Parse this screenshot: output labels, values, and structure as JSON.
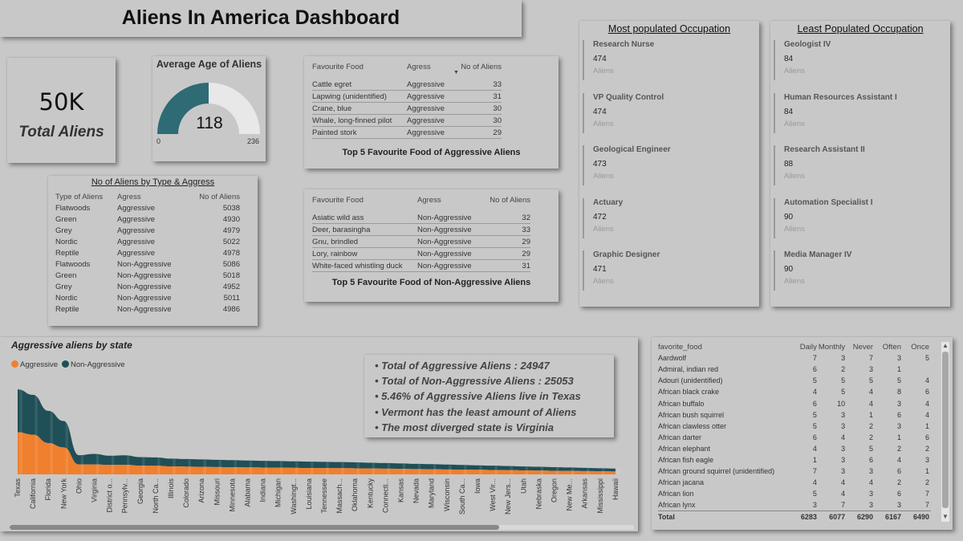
{
  "title": "Aliens In America Dashboard",
  "kpi": {
    "value": "50K",
    "label": "Total Aliens"
  },
  "gauge": {
    "title": "Average Age of Aliens",
    "value": 118,
    "min": 0,
    "max": 236,
    "value_label": "118",
    "min_label": "0",
    "max_label": "236",
    "fill_color": "#2e6b74",
    "track_color": "#e8e8e8"
  },
  "type_table": {
    "title": "No of Aliens by Type & Aggress",
    "headers": [
      "Type of Aliens",
      "Agress",
      "No of Aliens"
    ],
    "rows": [
      [
        "Flatwoods",
        "Aggressive",
        "5038"
      ],
      [
        "Green",
        "Aggressive",
        "4930"
      ],
      [
        "Grey",
        "Aggressive",
        "4979"
      ],
      [
        "Nordic",
        "Aggressive",
        "5022"
      ],
      [
        "Reptile",
        "Aggressive",
        "4978"
      ],
      [
        "Flatwoods",
        "Non-Aggressive",
        "5086"
      ],
      [
        "Green",
        "Non-Aggressive",
        "5018"
      ],
      [
        "Grey",
        "Non-Aggressive",
        "4952"
      ],
      [
        "Nordic",
        "Non-Aggressive",
        "5011"
      ],
      [
        "Reptile",
        "Non-Aggressive",
        "4986"
      ]
    ]
  },
  "agg_food": {
    "title": "Top 5 Favourite Food of Aggressive Aliens",
    "headers": [
      "Favourite Food",
      "Agress",
      "No of Aliens"
    ],
    "rows": [
      [
        "Cattle egret",
        "Aggressive",
        "33"
      ],
      [
        "Lapwing (unidentified)",
        "Aggressive",
        "31"
      ],
      [
        "Crane, blue",
        "Aggressive",
        "30"
      ],
      [
        "Whale, long-finned pilot",
        "Aggressive",
        "30"
      ],
      [
        "Painted stork",
        "Aggressive",
        "29"
      ]
    ]
  },
  "nonagg_food": {
    "title": "Top 5 Favourite Food of Non-Aggressive Aliens",
    "headers": [
      "Favourite Food",
      "Agress",
      "No of Aliens"
    ],
    "rows": [
      [
        "Asiatic wild ass",
        "Non-Aggressive",
        "32"
      ],
      [
        "Deer, barasingha",
        "Non-Aggressive",
        "33"
      ],
      [
        "Gnu, brindled",
        "Non-Aggressive",
        "29"
      ],
      [
        "Lory, rainbow",
        "Non-Aggressive",
        "29"
      ],
      [
        "White-faced whistling duck",
        "Non-Aggressive",
        "31"
      ]
    ]
  },
  "most_occ": {
    "title": "Most populated Occupation",
    "items": [
      {
        "name": "Research Nurse",
        "value": "474",
        "label": "Aliens"
      },
      {
        "name": "VP Quality Control",
        "value": "474",
        "label": "Aliens"
      },
      {
        "name": "Geological Engineer",
        "value": "473",
        "label": "Aliens"
      },
      {
        "name": "Actuary",
        "value": "472",
        "label": "Aliens"
      },
      {
        "name": "Graphic Designer",
        "value": "471",
        "label": "Aliens"
      }
    ]
  },
  "least_occ": {
    "title": "Least Populated Occupation",
    "items": [
      {
        "name": "Geologist IV",
        "value": "84",
        "label": "Aliens"
      },
      {
        "name": "Human Resources Assistant I",
        "value": "84",
        "label": "Aliens"
      },
      {
        "name": "Research Assistant II",
        "value": "88",
        "label": "Aliens"
      },
      {
        "name": "Automation Specialist I",
        "value": "90",
        "label": "Aliens"
      },
      {
        "name": "Media Manager IV",
        "value": "90",
        "label": "Aliens"
      }
    ]
  },
  "insights": [
    "Total of Aggressive Aliens : 24947",
    "Total of Non-Aggressive Aliens :  25053",
    "5.46% of Aggressive Aliens live in Texas",
    "Vermont has the least amount of Aliens",
    "The most diverged state is Virginia"
  ],
  "chart_data": {
    "type": "area",
    "title": "Aggressive aliens by state",
    "stacked": true,
    "legend_position": "top-left",
    "colors": {
      "Aggressive": "#f07f2e",
      "Non-Aggressive": "#1f4f57"
    },
    "categories": [
      "Texas",
      "California",
      "Florida",
      "New York",
      "Ohio",
      "Virginia",
      "District o...",
      "Pennsylv...",
      "Georgia",
      "North Ca...",
      "Illinois",
      "Colorado",
      "Arizona",
      "Missouri",
      "Minnesota",
      "Alabama",
      "Indiana",
      "Michigan",
      "Washingt...",
      "Louisiana",
      "Tennessee",
      "Massach...",
      "Oklahoma",
      "Kentucky",
      "Connecti...",
      "Kansas",
      "Nevada",
      "Maryland",
      "Wisconsin",
      "South Ca...",
      "Iowa",
      "West Vir...",
      "New Jers...",
      "Utah",
      "Nebraska",
      "Oregon",
      "New Me...",
      "Arkansas",
      "Mississippi",
      "Hawaii"
    ],
    "series": [
      {
        "name": "Aggressive",
        "values": [
          1362,
          1284,
          1012,
          872,
          320,
          320,
          305,
          312,
          283,
          278,
          258,
          250,
          244,
          238,
          232,
          226,
          221,
          217,
          212,
          208,
          204,
          200,
          196,
          190,
          184,
          178,
          172,
          166,
          160,
          154,
          148,
          142,
          136,
          130,
          124,
          118,
          112,
          106,
          100,
          95
        ]
      },
      {
        "name": "Non-Aggressive",
        "values": [
          1384,
          1286,
          1040,
          852,
          300,
          342,
          298,
          305,
          276,
          271,
          252,
          245,
          239,
          233,
          228,
          222,
          218,
          213,
          208,
          204,
          201,
          197,
          193,
          187,
          181,
          175,
          169,
          163,
          157,
          151,
          145,
          139,
          133,
          127,
          121,
          115,
          110,
          104,
          98,
          92
        ]
      }
    ]
  },
  "legend": {
    "aggressive": "Aggressive",
    "non_aggressive": "Non-Aggressive"
  },
  "matrix": {
    "headers": [
      "favorite_food",
      "Daily",
      "Monthly",
      "Never",
      "Often",
      "Once"
    ],
    "rows": [
      [
        "Aardwolf",
        "7",
        "3",
        "7",
        "3",
        "5"
      ],
      [
        "Admiral, indian red",
        "6",
        "2",
        "3",
        "1",
        ""
      ],
      [
        "Adouri (unidentified)",
        "5",
        "5",
        "5",
        "5",
        "4"
      ],
      [
        "African black crake",
        "4",
        "5",
        "4",
        "8",
        "6"
      ],
      [
        "African buffalo",
        "6",
        "10",
        "4",
        "3",
        "4"
      ],
      [
        "African bush squirrel",
        "5",
        "3",
        "1",
        "6",
        "4"
      ],
      [
        "African clawless otter",
        "5",
        "3",
        "2",
        "3",
        "1"
      ],
      [
        "African darter",
        "6",
        "4",
        "2",
        "1",
        "6"
      ],
      [
        "African elephant",
        "4",
        "3",
        "5",
        "2",
        "2"
      ],
      [
        "African fish eagle",
        "1",
        "3",
        "6",
        "4",
        "3"
      ],
      [
        "African ground squirrel (unidentified)",
        "7",
        "3",
        "3",
        "6",
        "1"
      ],
      [
        "African jacana",
        "4",
        "4",
        "4",
        "2",
        "2"
      ],
      [
        "African lion",
        "5",
        "4",
        "3",
        "6",
        "7"
      ],
      [
        "African lynx",
        "3",
        "7",
        "3",
        "3",
        "7"
      ]
    ],
    "total": [
      "Total",
      "6283",
      "6077",
      "6290",
      "6167",
      "6490"
    ]
  }
}
